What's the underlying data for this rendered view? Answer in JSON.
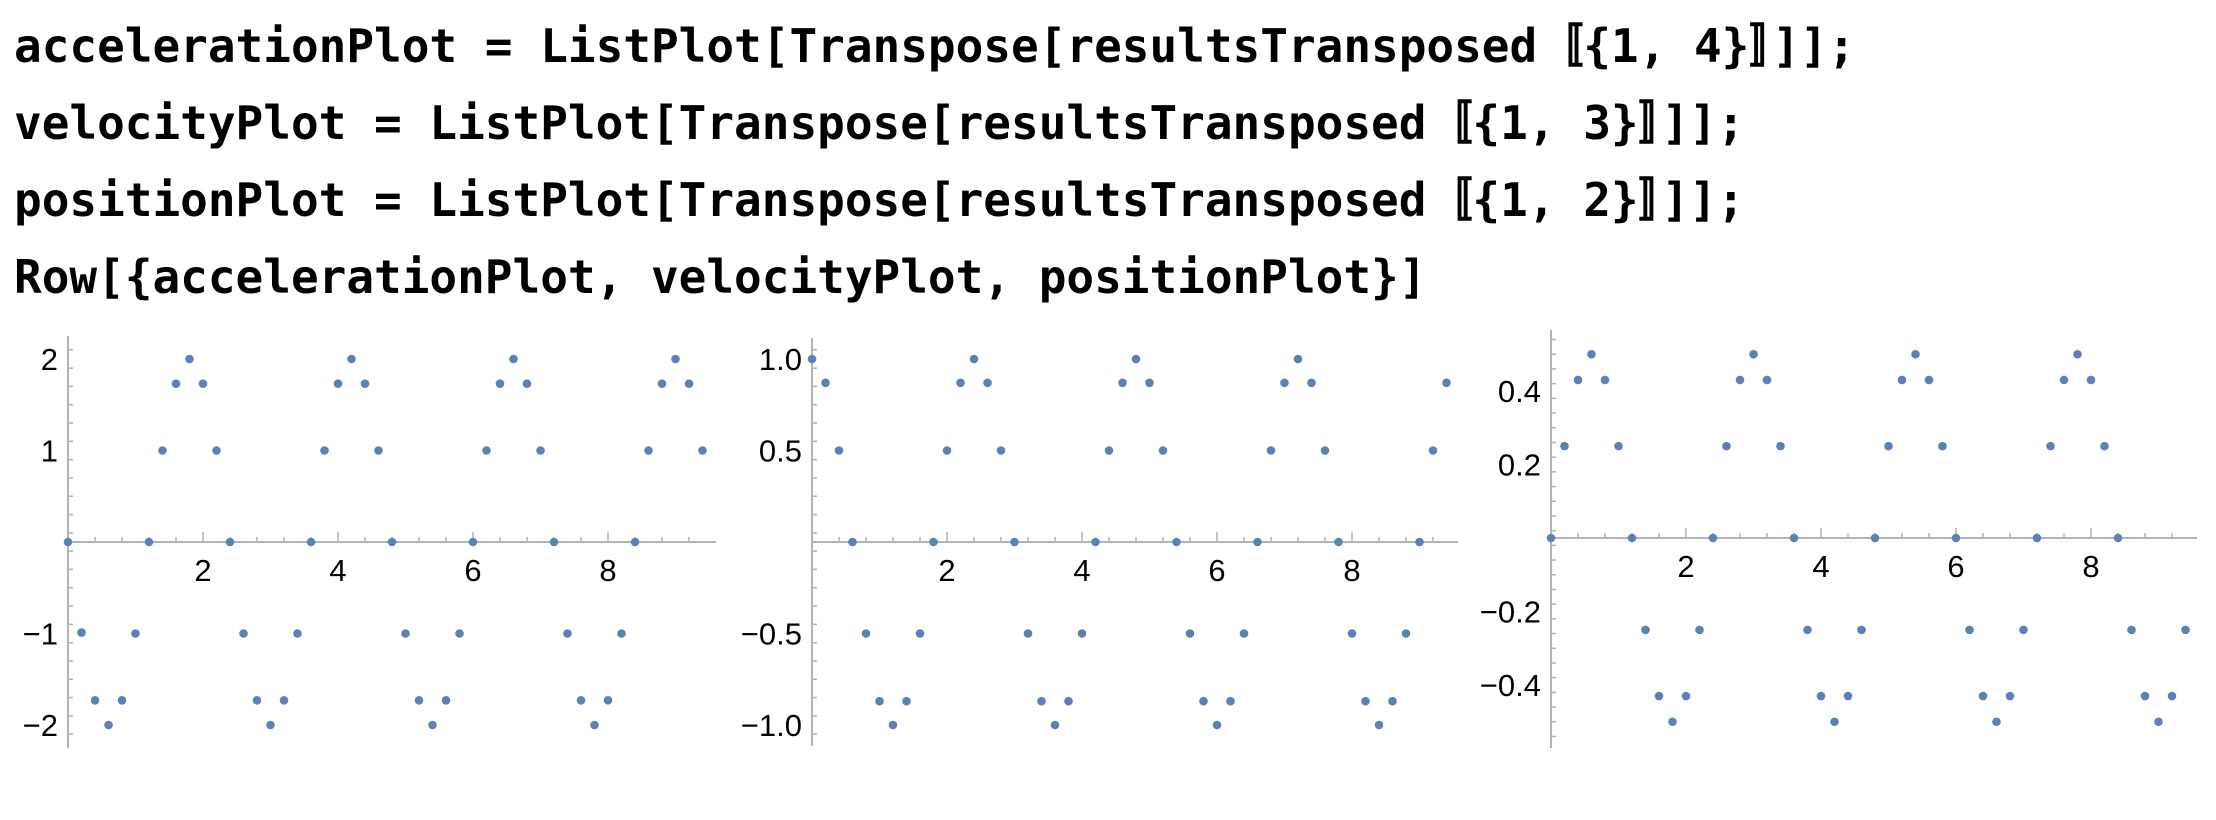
{
  "code_lines": [
    "accelerationPlot = ListPlot[Transpose[resultsTransposed〚{1, 4}〛]];",
    "velocityPlot = ListPlot[Transpose[resultsTransposed〚{1, 3}〛]];",
    "positionPlot = ListPlot[Transpose[resultsTransposed〚{1, 2}〛]];",
    "Row[{accelerationPlot, velocityPlot, positionPlot}]"
  ],
  "colors": {
    "points": "#5e81b5",
    "axes": "#b3b3b3",
    "text": "#000000"
  },
  "chart_data": [
    {
      "type": "scatter",
      "series": [
        {
          "x": [
            0,
            0.2,
            0.4,
            0.6,
            0.8,
            1.0,
            1.2,
            1.4,
            1.6,
            1.8,
            2.0,
            2.2,
            2.4,
            2.6,
            2.8,
            3.0,
            3.2,
            3.4,
            3.6,
            3.8,
            4.0,
            4.2,
            4.4,
            4.6,
            4.8,
            5.0,
            5.2,
            5.4,
            5.6,
            5.8,
            6.0,
            6.2,
            6.4,
            6.6,
            6.8,
            7.0,
            7.2,
            7.4,
            7.6,
            7.8,
            8.0,
            8.2,
            8.4,
            8.6,
            8.8,
            9.0,
            9.2,
            9.4
          ],
          "y": [
            0,
            -0.99,
            -1.73,
            -2.0,
            -1.73,
            -1.0,
            0,
            1.0,
            1.73,
            2.0,
            1.73,
            1.0,
            0,
            -1.0,
            -1.73,
            -2.0,
            -1.73,
            -1.0,
            0,
            1.0,
            1.73,
            2.0,
            1.73,
            1.0,
            0,
            -1.0,
            -1.73,
            -2.0,
            -1.73,
            -1.0,
            0,
            1.0,
            1.73,
            2.0,
            1.73,
            1.0,
            0,
            -1.0,
            -1.73,
            -2.0,
            -1.73,
            -1.0,
            0,
            1.0,
            1.73,
            2.0,
            1.73,
            1.0
          ]
        }
      ],
      "xlim": [
        0,
        9.6
      ],
      "ylim": [
        -2.1,
        2.1
      ],
      "xticks": [
        2,
        4,
        6,
        8
      ],
      "yticks": [
        -2,
        -1,
        1,
        2
      ],
      "grid": false
    },
    {
      "type": "scatter",
      "series": [
        {
          "x": [
            0,
            0.2,
            0.4,
            0.6,
            0.8,
            1.0,
            1.2,
            1.4,
            1.6,
            1.8,
            2.0,
            2.2,
            2.4,
            2.6,
            2.8,
            3.0,
            3.2,
            3.4,
            3.6,
            3.8,
            4.0,
            4.2,
            4.4,
            4.6,
            4.8,
            5.0,
            5.2,
            5.4,
            5.6,
            5.8,
            6.0,
            6.2,
            6.4,
            6.6,
            6.8,
            7.0,
            7.2,
            7.4,
            7.6,
            7.8,
            8.0,
            8.2,
            8.4,
            8.6,
            8.8,
            9.0,
            9.2,
            9.4
          ],
          "y": [
            1.0,
            0.87,
            0.5,
            0,
            -0.5,
            -0.87,
            -1.0,
            -0.87,
            -0.5,
            0,
            0.5,
            0.87,
            1.0,
            0.87,
            0.5,
            0,
            -0.5,
            -0.87,
            -1.0,
            -0.87,
            -0.5,
            0,
            0.5,
            0.87,
            1.0,
            0.87,
            0.5,
            0,
            -0.5,
            -0.87,
            -1.0,
            -0.87,
            -0.5,
            0,
            0.5,
            0.87,
            1.0,
            0.87,
            0.5,
            0,
            -0.5,
            -0.87,
            -1.0,
            -0.87,
            -0.5,
            0,
            0.5,
            0.87
          ]
        }
      ],
      "xlim": [
        0,
        9.6
      ],
      "ylim": [
        -1.05,
        1.05
      ],
      "xticks": [
        2,
        4,
        6,
        8
      ],
      "yticks": [
        -1.0,
        -0.5,
        0.5,
        1.0
      ],
      "grid": false
    },
    {
      "type": "scatter",
      "series": [
        {
          "x": [
            0,
            0.2,
            0.4,
            0.6,
            0.8,
            1.0,
            1.2,
            1.4,
            1.6,
            1.8,
            2.0,
            2.2,
            2.4,
            2.6,
            2.8,
            3.0,
            3.2,
            3.4,
            3.6,
            3.8,
            4.0,
            4.2,
            4.4,
            4.6,
            4.8,
            5.0,
            5.2,
            5.4,
            5.6,
            5.8,
            6.0,
            6.2,
            6.4,
            6.6,
            6.8,
            7.0,
            7.2,
            7.4,
            7.6,
            7.8,
            8.0,
            8.2,
            8.4,
            8.6,
            8.8,
            9.0,
            9.2,
            9.4
          ],
          "y": [
            0,
            0.25,
            0.43,
            0.5,
            0.43,
            0.25,
            0,
            -0.25,
            -0.43,
            -0.5,
            -0.43,
            -0.25,
            0,
            0.25,
            0.43,
            0.5,
            0.43,
            0.25,
            0,
            -0.25,
            -0.43,
            -0.5,
            -0.43,
            -0.25,
            0,
            0.25,
            0.43,
            0.5,
            0.43,
            0.25,
            0,
            -0.25,
            -0.43,
            -0.5,
            -0.43,
            -0.25,
            0,
            0.25,
            0.43,
            0.5,
            0.43,
            0.25,
            0,
            -0.25,
            -0.43,
            -0.5,
            -0.43,
            -0.25
          ]
        }
      ],
      "xlim": [
        0,
        9.6
      ],
      "ylim": [
        -0.58,
        0.58
      ],
      "xticks": [
        2,
        4,
        6,
        8
      ],
      "yticks": [
        -0.4,
        -0.2,
        0.2,
        0.4
      ],
      "grid": false
    }
  ]
}
